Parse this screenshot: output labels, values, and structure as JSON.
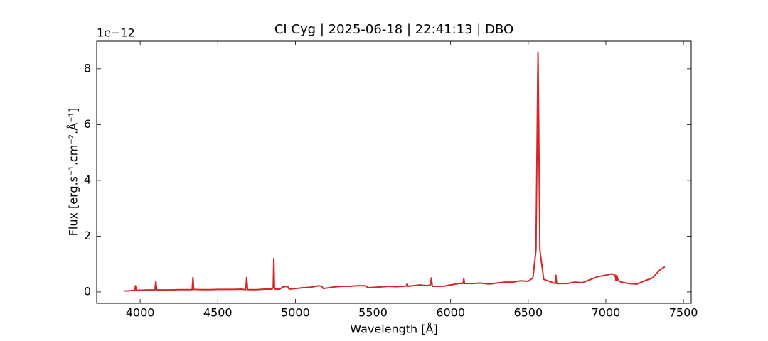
{
  "chart_data": {
    "type": "line",
    "title": "CI Cyg | 2025-06-18 | 22:41:13 | DBO",
    "x_label": "Wavelength [Å]",
    "y_label": "Flux [erg.s⁻¹.cm⁻².Å⁻¹]",
    "y_offset_text": "1e−12",
    "color": "#d62728",
    "xlim": [
      3720,
      7550
    ],
    "ylim": [
      -0.41,
      8.99
    ],
    "xticks": [
      4000,
      4500,
      5000,
      5500,
      6000,
      6500,
      7000,
      7500
    ],
    "yticks": [
      0,
      2,
      4,
      6,
      8
    ],
    "grid": false,
    "x": [
      3900,
      3950,
      3965,
      3970,
      3975,
      4000,
      4050,
      4095,
      4101,
      4107,
      4150,
      4200,
      4250,
      4300,
      4335,
      4340,
      4345,
      4400,
      4450,
      4500,
      4550,
      4600,
      4650,
      4680,
      4686,
      4692,
      4750,
      4800,
      4850,
      4857,
      4861,
      4865,
      4870,
      4900,
      4920,
      4950,
      4960,
      5000,
      5050,
      5100,
      5150,
      5170,
      5180,
      5250,
      5300,
      5350,
      5400,
      5450,
      5470,
      5550,
      5600,
      5650,
      5700,
      5715,
      5720,
      5725,
      5800,
      5850,
      5870,
      5876,
      5882,
      5950,
      6000,
      6050,
      6080,
      6085,
      6090,
      6150,
      6190,
      6250,
      6300,
      6350,
      6400,
      6450,
      6500,
      6530,
      6550,
      6560,
      6563,
      6566,
      6575,
      6600,
      6650,
      6673,
      6678,
      6683,
      6750,
      6800,
      6850,
      6880,
      6950,
      7000,
      7040,
      7060,
      7065,
      7070,
      7080,
      7100,
      7150,
      7200,
      7250,
      7300,
      7350,
      7380
    ],
    "values": [
      0.03,
      0.05,
      0.06,
      0.22,
      0.06,
      0.06,
      0.07,
      0.07,
      0.38,
      0.07,
      0.07,
      0.07,
      0.08,
      0.08,
      0.08,
      0.52,
      0.09,
      0.08,
      0.08,
      0.09,
      0.09,
      0.09,
      0.1,
      0.08,
      0.52,
      0.08,
      0.08,
      0.1,
      0.1,
      0.15,
      1.2,
      0.15,
      0.1,
      0.1,
      0.18,
      0.2,
      0.1,
      0.12,
      0.15,
      0.17,
      0.22,
      0.2,
      0.12,
      0.18,
      0.2,
      0.2,
      0.22,
      0.22,
      0.15,
      0.18,
      0.2,
      0.19,
      0.2,
      0.22,
      0.3,
      0.2,
      0.25,
      0.22,
      0.25,
      0.5,
      0.2,
      0.2,
      0.25,
      0.3,
      0.3,
      0.48,
      0.3,
      0.3,
      0.32,
      0.28,
      0.32,
      0.35,
      0.35,
      0.4,
      0.38,
      0.5,
      1.5,
      7.0,
      8.6,
      7.0,
      1.5,
      0.45,
      0.35,
      0.3,
      0.6,
      0.3,
      0.3,
      0.35,
      0.33,
      0.4,
      0.55,
      0.6,
      0.65,
      0.6,
      0.4,
      0.6,
      0.4,
      0.35,
      0.3,
      0.28,
      0.4,
      0.5,
      0.8,
      0.9
    ]
  }
}
